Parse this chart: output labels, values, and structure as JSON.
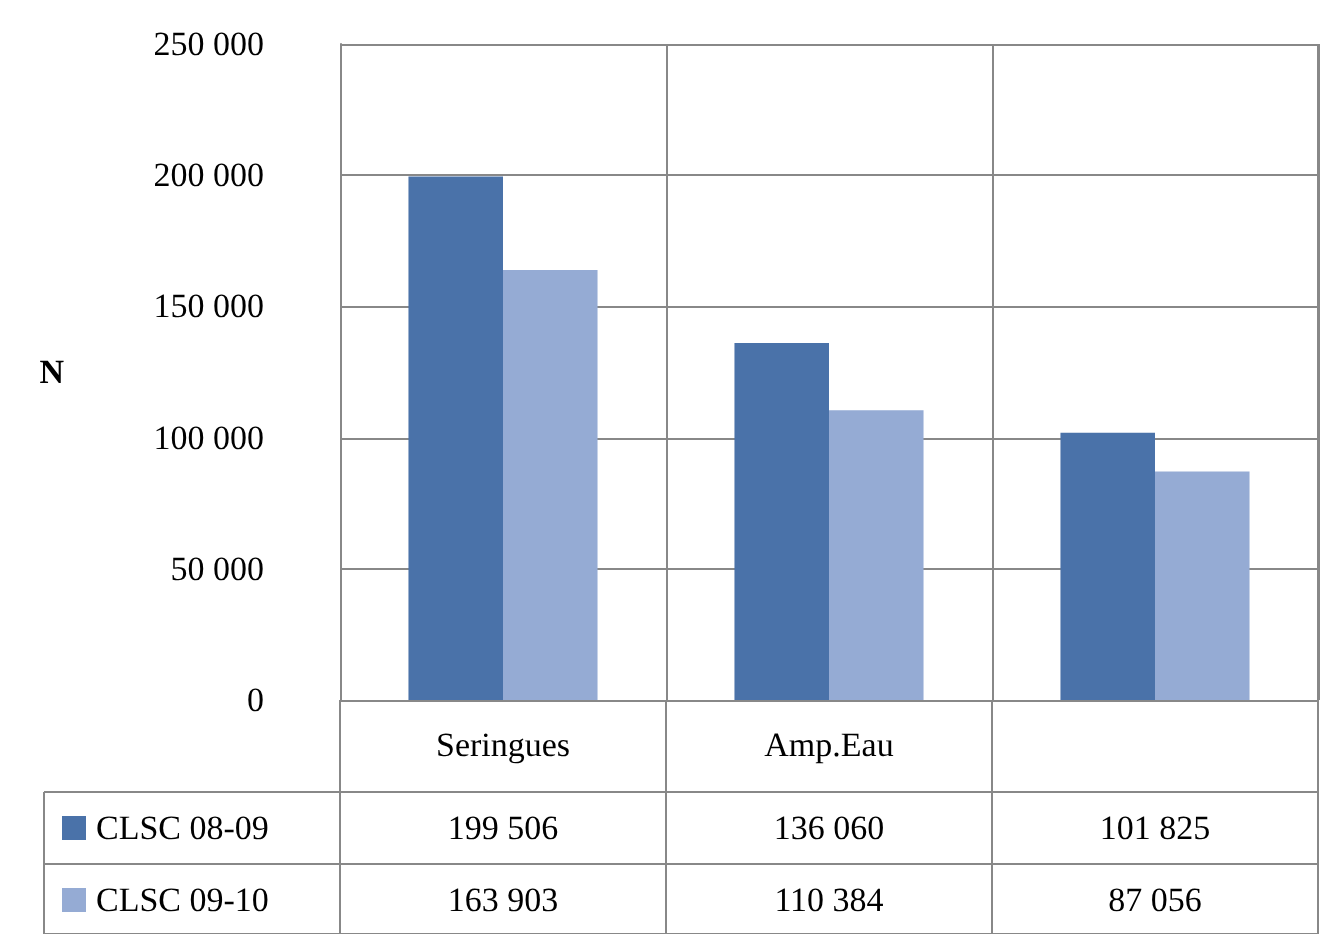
{
  "chart_data": {
    "type": "bar",
    "ylabel": "N",
    "categories": [
      "Seringues",
      "Amp.Eau",
      null
    ],
    "series": [
      {
        "name": "CLSC 08-09",
        "color": "#4a72a9",
        "values": [
          199506,
          136060,
          101825
        ]
      },
      {
        "name": "CLSC 09-10",
        "color": "#95abd4",
        "values": [
          163903,
          110384,
          87056
        ]
      }
    ],
    "ylim": [
      0,
      250000
    ],
    "yticks": [
      0,
      50000,
      100000,
      150000,
      200000,
      250000
    ],
    "grid": "y",
    "legend": "bottom left",
    "data_labels": true
  }
}
